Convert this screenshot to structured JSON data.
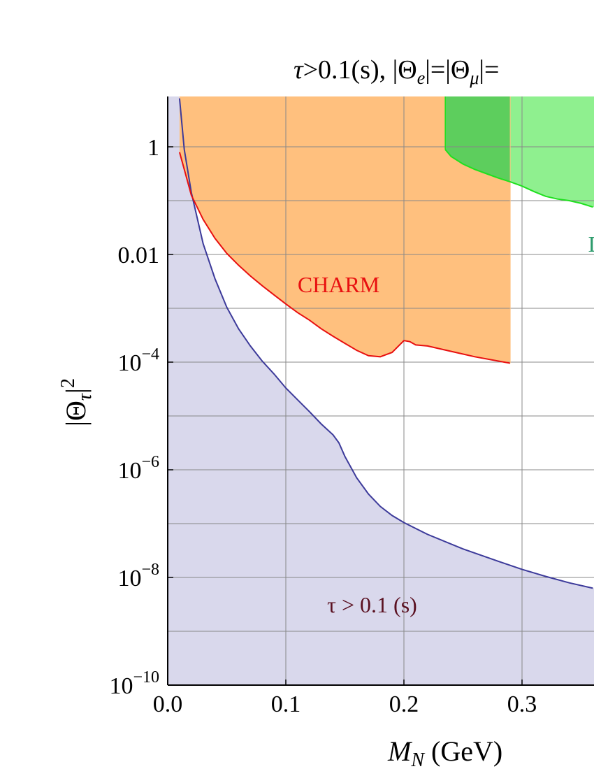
{
  "chart_data": {
    "type": "area",
    "title": "τ>0.1(s),   |Θe|=|Θμ|=",
    "title_parts": {
      "tau": "τ",
      "cond": ">0.1(s),   |Θ",
      "sub_e": "e",
      "mid": "|=|Θ",
      "sub_mu": "μ",
      "end": "|="
    },
    "xlabel": "M_N (GeV)",
    "xlabel_parts": {
      "m": "M",
      "sub": "N",
      "unit": " (GeV)"
    },
    "ylabel": "|Θτ|²",
    "ylabel_parts": {
      "theta": "|Θ",
      "sub": "τ",
      "bar": "|",
      "sup": "2"
    },
    "x_scale": "linear",
    "y_scale": "log",
    "xlim": [
      0.0,
      0.36
    ],
    "ylim_exp": [
      -10,
      0.9
    ],
    "grid": true,
    "x_ticks": [
      {
        "value": 0.0,
        "label": "0.0"
      },
      {
        "value": 0.1,
        "label": "0.1"
      },
      {
        "value": 0.2,
        "label": "0.2"
      },
      {
        "value": 0.3,
        "label": "0.3"
      }
    ],
    "y_ticks": [
      {
        "exp": -10,
        "base": "10",
        "sup": "−10"
      },
      {
        "exp": -8,
        "base": "10",
        "sup": "−8"
      },
      {
        "exp": -6,
        "base": "10",
        "sup": "−6"
      },
      {
        "exp": -4,
        "base": "10",
        "sup": "−4"
      },
      {
        "exp": -2,
        "base": "0.01",
        "sup": ""
      },
      {
        "exp": 0,
        "base": "1",
        "sup": ""
      }
    ],
    "y_minor_grid_exp": [
      -9,
      -7,
      -5,
      -3,
      -1
    ],
    "series": [
      {
        "name": "τ > 0.1 (s)",
        "color": "#3c3a9a",
        "fill": "#d9d8ec",
        "label_color": "#5a1020",
        "points_log": [
          [
            0.01,
            0.9
          ],
          [
            0.014,
            -0.05
          ],
          [
            0.02,
            -0.85
          ],
          [
            0.03,
            -1.8
          ],
          [
            0.04,
            -2.45
          ],
          [
            0.05,
            -2.98
          ],
          [
            0.06,
            -3.38
          ],
          [
            0.07,
            -3.7
          ],
          [
            0.08,
            -3.98
          ],
          [
            0.09,
            -4.22
          ],
          [
            0.1,
            -4.48
          ],
          [
            0.11,
            -4.7
          ],
          [
            0.12,
            -4.92
          ],
          [
            0.13,
            -5.15
          ],
          [
            0.14,
            -5.35
          ],
          [
            0.145,
            -5.5
          ],
          [
            0.15,
            -5.75
          ],
          [
            0.16,
            -6.15
          ],
          [
            0.17,
            -6.45
          ],
          [
            0.18,
            -6.68
          ],
          [
            0.19,
            -6.85
          ],
          [
            0.2,
            -6.98
          ],
          [
            0.22,
            -7.2
          ],
          [
            0.25,
            -7.47
          ],
          [
            0.28,
            -7.7
          ],
          [
            0.3,
            -7.85
          ],
          [
            0.32,
            -7.98
          ],
          [
            0.34,
            -8.1
          ],
          [
            0.36,
            -8.2
          ]
        ]
      },
      {
        "name": "CHARM",
        "color": "#e81010",
        "fill": "#ffc07e",
        "points_log": [
          [
            0.01,
            -0.1
          ],
          [
            0.015,
            -0.5
          ],
          [
            0.02,
            -0.9
          ],
          [
            0.03,
            -1.35
          ],
          [
            0.04,
            -1.7
          ],
          [
            0.05,
            -1.98
          ],
          [
            0.06,
            -2.2
          ],
          [
            0.07,
            -2.4
          ],
          [
            0.08,
            -2.58
          ],
          [
            0.09,
            -2.75
          ],
          [
            0.1,
            -2.92
          ],
          [
            0.11,
            -3.08
          ],
          [
            0.12,
            -3.22
          ],
          [
            0.13,
            -3.38
          ],
          [
            0.14,
            -3.52
          ],
          [
            0.15,
            -3.65
          ],
          [
            0.16,
            -3.78
          ],
          [
            0.17,
            -3.88
          ],
          [
            0.18,
            -3.9
          ],
          [
            0.19,
            -3.82
          ],
          [
            0.2,
            -3.6
          ],
          [
            0.205,
            -3.62
          ],
          [
            0.21,
            -3.68
          ],
          [
            0.22,
            -3.7
          ],
          [
            0.24,
            -3.8
          ],
          [
            0.26,
            -3.9
          ],
          [
            0.28,
            -3.98
          ],
          [
            0.29,
            -4.02
          ]
        ],
        "right_edge_x": 0.29
      },
      {
        "name": "D",
        "color": "#1fe01f",
        "fill": "#8ff08f",
        "label_color": "#2a9a6a",
        "left_edge_x": 0.235,
        "overlap_fill": "#55c855",
        "points_log": [
          [
            0.235,
            -0.05
          ],
          [
            0.24,
            -0.18
          ],
          [
            0.25,
            -0.32
          ],
          [
            0.26,
            -0.42
          ],
          [
            0.27,
            -0.5
          ],
          [
            0.28,
            -0.58
          ],
          [
            0.29,
            -0.65
          ],
          [
            0.3,
            -0.73
          ],
          [
            0.31,
            -0.83
          ],
          [
            0.32,
            -0.92
          ],
          [
            0.33,
            -0.97
          ],
          [
            0.34,
            -1.0
          ],
          [
            0.35,
            -1.05
          ],
          [
            0.36,
            -1.12
          ]
        ]
      }
    ],
    "annotations": [
      {
        "text": "CHARM",
        "series": 1,
        "x": 0.11,
        "y_exp": -2.7
      },
      {
        "text": "τ > 0.1 (s)",
        "series": 0,
        "x": 0.135,
        "y_exp": -8.65
      },
      {
        "text": "D",
        "series": 2,
        "x": 0.356,
        "y_exp": -1.95
      }
    ]
  }
}
